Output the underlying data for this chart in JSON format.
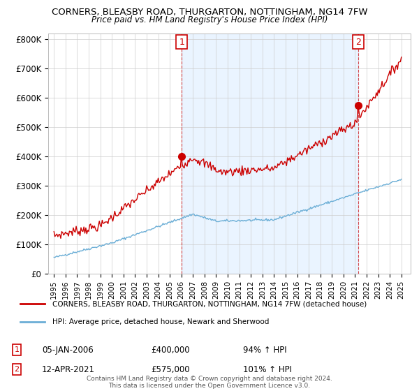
{
  "title": "CORNERS, BLEASBY ROAD, THURGARTON, NOTTINGHAM, NG14 7FW",
  "subtitle": "Price paid vs. HM Land Registry's House Price Index (HPI)",
  "ylabel_ticks": [
    "£0",
    "£100K",
    "£200K",
    "£300K",
    "£400K",
    "£500K",
    "£600K",
    "£700K",
    "£800K"
  ],
  "ytick_values": [
    0,
    100000,
    200000,
    300000,
    400000,
    500000,
    600000,
    700000,
    800000
  ],
  "ylim": [
    0,
    820000
  ],
  "sale1": {
    "date_num": 2006.03,
    "price": 400000,
    "label": "1",
    "pct": "94%",
    "date_str": "05-JAN-2006"
  },
  "sale2": {
    "date_num": 2021.28,
    "price": 575000,
    "label": "2",
    "pct": "101%",
    "date_str": "12-APR-2021"
  },
  "hpi_color": "#6baed6",
  "price_color": "#cc0000",
  "marker_color": "#cc0000",
  "shade_color": "#ddeeff",
  "legend_label1": "CORNERS, BLEASBY ROAD, THURGARTON, NOTTINGHAM, NG14 7FW (detached house)",
  "legend_label2": "HPI: Average price, detached house, Newark and Sherwood",
  "footer1": "Contains HM Land Registry data © Crown copyright and database right 2024.",
  "footer2": "This data is licensed under the Open Government Licence v3.0.",
  "xlim_start": 1994.5,
  "xlim_end": 2025.8
}
